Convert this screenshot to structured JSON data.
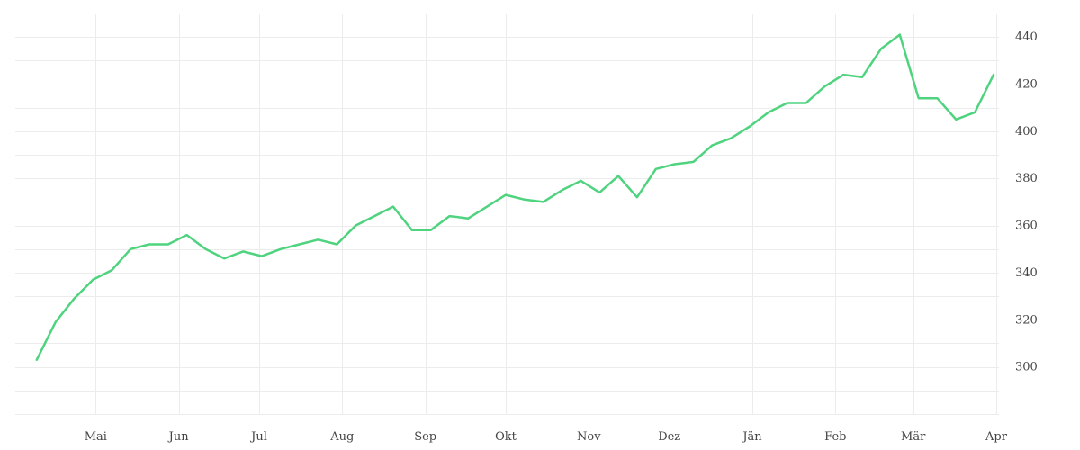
{
  "chart_data": {
    "type": "line",
    "title": "",
    "xlabel": "",
    "ylabel": "",
    "ylim": [
      280,
      450
    ],
    "y_ticks": [
      300,
      320,
      340,
      360,
      380,
      400,
      420,
      440
    ],
    "x_range": [
      "2023-04-01",
      "2024-04-02"
    ],
    "x_ticks": [
      {
        "date": "2023-05-01",
        "label": "Mai"
      },
      {
        "date": "2023-06-01",
        "label": "Jun"
      },
      {
        "date": "2023-07-01",
        "label": "Jul"
      },
      {
        "date": "2023-08-01",
        "label": "Aug"
      },
      {
        "date": "2023-09-01",
        "label": "Sep"
      },
      {
        "date": "2023-10-01",
        "label": "Okt"
      },
      {
        "date": "2023-11-01",
        "label": "Nov"
      },
      {
        "date": "2023-12-01",
        "label": "Dez"
      },
      {
        "date": "2024-01-01",
        "label": "Jän"
      },
      {
        "date": "2024-02-01",
        "label": "Feb"
      },
      {
        "date": "2024-03-01",
        "label": "Mär"
      },
      {
        "date": "2024-04-01",
        "label": "Apr"
      }
    ],
    "grid": true,
    "y_axis_position": "right",
    "legend": "none",
    "series": [
      {
        "color": "#4fd37f",
        "x": [
          "2023-04-09",
          "2023-04-16",
          "2023-04-23",
          "2023-04-30",
          "2023-05-07",
          "2023-05-14",
          "2023-05-21",
          "2023-05-28",
          "2023-06-04",
          "2023-06-11",
          "2023-06-18",
          "2023-06-25",
          "2023-07-02",
          "2023-07-09",
          "2023-07-16",
          "2023-07-23",
          "2023-07-30",
          "2023-08-06",
          "2023-08-13",
          "2023-08-20",
          "2023-08-27",
          "2023-09-03",
          "2023-09-10",
          "2023-09-17",
          "2023-09-24",
          "2023-10-01",
          "2023-10-08",
          "2023-10-15",
          "2023-10-22",
          "2023-10-29",
          "2023-11-05",
          "2023-11-12",
          "2023-11-19",
          "2023-11-26",
          "2023-12-03",
          "2023-12-10",
          "2023-12-17",
          "2023-12-24",
          "2023-12-31",
          "2024-01-07",
          "2024-01-14",
          "2024-01-21",
          "2024-01-28",
          "2024-02-04",
          "2024-02-11",
          "2024-02-18",
          "2024-02-25",
          "2024-03-03",
          "2024-03-10",
          "2024-03-17",
          "2024-03-24",
          "2024-03-31"
        ],
        "y": [
          303,
          319,
          329,
          337,
          341,
          350,
          352,
          352,
          356,
          350,
          346,
          349,
          347,
          350,
          352,
          354,
          352,
          360,
          364,
          368,
          358,
          358,
          364,
          363,
          368,
          373,
          371,
          370,
          375,
          379,
          374,
          381,
          372,
          384,
          386,
          387,
          394,
          397,
          402,
          408,
          412,
          412,
          419,
          424,
          423,
          435,
          441,
          414,
          414,
          405,
          408,
          424
        ]
      }
    ]
  }
}
